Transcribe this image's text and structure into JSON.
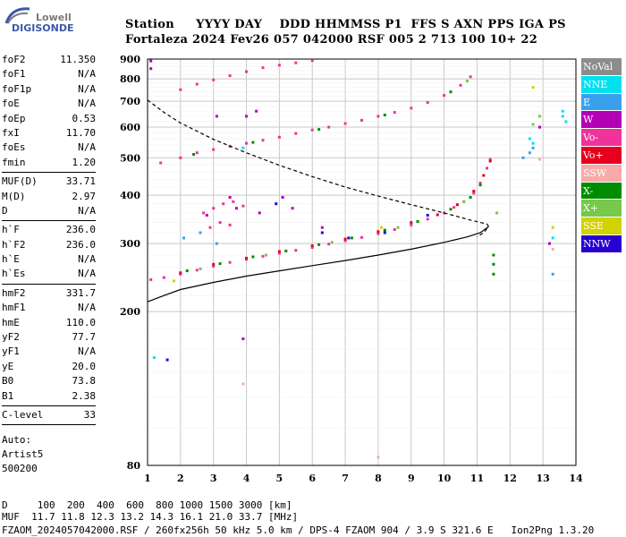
{
  "logo": {
    "line1": "Lowell",
    "line2": "DIGISONDE"
  },
  "header": {
    "line1": "Station     YYYY DAY    DDD HHMMSS P1  FFS S AXN PPS IGA PS",
    "line2": "Fortaleza 2024 Fev26 057 042000 RSF 005 2 713 100 10+ 22"
  },
  "params": {
    "group1": [
      {
        "k": "foF2",
        "v": "11.350"
      },
      {
        "k": "foF1",
        "v": "N/A"
      },
      {
        "k": "foF1p",
        "v": "N/A"
      },
      {
        "k": "foE",
        "v": "N/A"
      },
      {
        "k": "foEp",
        "v": "0.53"
      },
      {
        "k": "fxI",
        "v": "11.70"
      },
      {
        "k": "foEs",
        "v": "N/A"
      },
      {
        "k": "fmin",
        "v": "1.20"
      }
    ],
    "group2": [
      {
        "k": "MUF(D)",
        "v": "33.71"
      },
      {
        "k": "M(D)",
        "v": "2.97"
      },
      {
        "k": "D",
        "v": "N/A"
      }
    ],
    "group3": [
      {
        "k": "h`F",
        "v": "236.0"
      },
      {
        "k": "h`F2",
        "v": "236.0"
      },
      {
        "k": "h`E",
        "v": "N/A"
      },
      {
        "k": "h`Es",
        "v": "N/A"
      }
    ],
    "group4": [
      {
        "k": "hmF2",
        "v": "331.7"
      },
      {
        "k": "hmF1",
        "v": "N/A"
      },
      {
        "k": "hmE",
        "v": "110.0"
      },
      {
        "k": "yF2",
        "v": "77.7"
      },
      {
        "k": "yF1",
        "v": "N/A"
      },
      {
        "k": "yE",
        "v": "20.0"
      },
      {
        "k": "B0",
        "v": "73.8"
      },
      {
        "k": "B1",
        "v": "2.38"
      }
    ],
    "clevel": {
      "k": "C-level",
      "v": "33"
    }
  },
  "auto": [
    "Auto:",
    "Artist5",
    "500200"
  ],
  "footer": {
    "line1": "D     100  200  400  600  800 1000 1500 3000 [km]",
    "line2": "MUF  11.7 11.8 12.3 13.2 14.3 16.1 21.0 33.7 [MHz]",
    "line3": "FZAOM_2024057042000.RSF / 260fx256h 50 kHz 5.0 km / DPS-4 FZAOM 904 / 3.9 S 321.6 E   Ion2Png 1.3.20"
  },
  "legend": [
    {
      "label": "NoVal",
      "color": "#8c8c8c"
    },
    {
      "label": "NNE",
      "color": "#00e1f0"
    },
    {
      "label": "E",
      "color": "#3aa0ee"
    },
    {
      "label": "W",
      "color": "#b400b4"
    },
    {
      "label": "Vo-",
      "color": "#f0329b"
    },
    {
      "label": "Vo+",
      "color": "#e6001e"
    },
    {
      "label": "SSW",
      "color": "#f8aaaa"
    },
    {
      "label": "X-",
      "color": "#008c00"
    },
    {
      "label": "X+",
      "color": "#78c84b"
    },
    {
      "label": "SSE",
      "color": "#d2d200"
    },
    {
      "label": "NNW",
      "color": "#2800d2"
    }
  ],
  "chart_data": {
    "type": "scatter",
    "xlabel": "",
    "ylabel": "",
    "xlim": [
      1,
      14
    ],
    "ylim": [
      80,
      900
    ],
    "y_scale": "log",
    "x_ticks": [
      1,
      2,
      3,
      4,
      5,
      6,
      7,
      8,
      9,
      10,
      11,
      12,
      13,
      14
    ],
    "y_ticks": [
      80,
      200,
      300,
      400,
      500,
      600,
      700,
      800,
      900
    ],
    "grid": true,
    "series": [
      {
        "name": "Vo-",
        "color": "#f0329b",
        "kind": "echo",
        "points": [
          [
            1.1,
            242
          ],
          [
            1.5,
            245
          ],
          [
            2,
            250
          ],
          [
            2.5,
            256
          ],
          [
            3,
            262
          ],
          [
            3.5,
            268
          ],
          [
            4,
            273
          ],
          [
            4.5,
            278
          ],
          [
            5,
            283
          ],
          [
            5.5,
            288
          ],
          [
            6,
            293
          ],
          [
            6.5,
            299
          ],
          [
            7,
            305
          ],
          [
            7.5,
            311
          ],
          [
            8,
            318
          ],
          [
            8.5,
            326
          ],
          [
            9,
            335
          ],
          [
            9.5,
            347
          ],
          [
            10,
            360
          ],
          [
            10.3,
            372
          ],
          [
            10.6,
            385
          ],
          [
            10.9,
            405
          ],
          [
            11.1,
            430
          ],
          [
            11.3,
            470
          ],
          [
            11.4,
            495
          ],
          [
            1.4,
            485
          ],
          [
            2,
            500
          ],
          [
            2.5,
            515
          ],
          [
            3,
            525
          ],
          [
            3.5,
            535
          ],
          [
            4,
            545
          ],
          [
            4.5,
            555
          ],
          [
            5,
            565
          ],
          [
            5.5,
            578
          ],
          [
            6,
            590
          ],
          [
            6.5,
            600
          ],
          [
            7,
            613
          ],
          [
            7.5,
            625
          ],
          [
            8,
            640
          ],
          [
            8.5,
            655
          ],
          [
            9,
            672
          ],
          [
            9.5,
            695
          ],
          [
            10,
            725
          ],
          [
            10.5,
            770
          ],
          [
            10.8,
            810
          ],
          [
            2,
            750
          ],
          [
            2.5,
            775
          ],
          [
            3,
            795
          ],
          [
            3.5,
            815
          ],
          [
            4,
            835
          ],
          [
            4.5,
            855
          ],
          [
            5,
            868
          ],
          [
            5.5,
            880
          ],
          [
            6,
            892
          ],
          [
            2.7,
            360
          ],
          [
            3,
            370
          ],
          [
            3.3,
            380
          ],
          [
            3.6,
            385
          ],
          [
            3.9,
            375
          ],
          [
            3.2,
            340
          ],
          [
            3.5,
            335
          ],
          [
            2.9,
            330
          ]
        ]
      },
      {
        "name": "Vo+",
        "color": "#e6001e",
        "kind": "echo",
        "points": [
          [
            2,
            252
          ],
          [
            3,
            265
          ],
          [
            4,
            275
          ],
          [
            5,
            286
          ],
          [
            6,
            296
          ],
          [
            7,
            308
          ],
          [
            8,
            322
          ],
          [
            9,
            340
          ],
          [
            9.8,
            356
          ],
          [
            10.4,
            378
          ],
          [
            10.9,
            410
          ],
          [
            11.2,
            450
          ],
          [
            11.4,
            490
          ]
        ]
      },
      {
        "name": "X-",
        "color": "#008c00",
        "kind": "echo",
        "points": [
          [
            2.2,
            255
          ],
          [
            3.2,
            266
          ],
          [
            4.2,
            277
          ],
          [
            5.2,
            287
          ],
          [
            6.2,
            298
          ],
          [
            7.2,
            310
          ],
          [
            8.2,
            325
          ],
          [
            9.2,
            342
          ],
          [
            10.2,
            368
          ],
          [
            10.8,
            395
          ],
          [
            11.1,
            425
          ],
          [
            11.5,
            280
          ],
          [
            11.5,
            265
          ],
          [
            11.5,
            250
          ],
          [
            2.4,
            510
          ],
          [
            4.2,
            548
          ],
          [
            6.2,
            592
          ],
          [
            8.2,
            645
          ],
          [
            10.2,
            740
          ]
        ]
      },
      {
        "name": "X+",
        "color": "#78c84b",
        "kind": "echo",
        "points": [
          [
            2.6,
            258
          ],
          [
            4.6,
            280
          ],
          [
            6.6,
            302
          ],
          [
            8.6,
            330
          ],
          [
            10.6,
            385
          ],
          [
            11.6,
            360
          ],
          [
            12.7,
            610
          ],
          [
            12.9,
            640
          ],
          [
            10.7,
            790
          ]
        ]
      },
      {
        "name": "W",
        "color": "#b400b4",
        "kind": "echo",
        "points": [
          [
            1.1,
            890
          ],
          [
            1.1,
            850
          ],
          [
            3.5,
            395
          ],
          [
            3.7,
            370
          ],
          [
            2.8,
            355
          ],
          [
            4.4,
            360
          ],
          [
            5.1,
            395
          ],
          [
            5.4,
            370
          ],
          [
            6.3,
            330
          ],
          [
            3.9,
            170
          ],
          [
            13.2,
            300
          ],
          [
            12.9,
            600
          ],
          [
            3.1,
            640
          ],
          [
            4,
            640
          ],
          [
            4.3,
            660
          ]
        ]
      },
      {
        "name": "NNE",
        "color": "#00e1f0",
        "kind": "echo",
        "points": [
          [
            13.6,
            660
          ],
          [
            13.6,
            640
          ],
          [
            13.7,
            620
          ],
          [
            12.6,
            560
          ],
          [
            12.7,
            545
          ],
          [
            1.2,
            152
          ],
          [
            3.9,
            530
          ],
          [
            13.3,
            310
          ]
        ]
      },
      {
        "name": "E",
        "color": "#3aa0ee",
        "kind": "echo",
        "points": [
          [
            12.4,
            500
          ],
          [
            12.6,
            515
          ],
          [
            12.7,
            530
          ],
          [
            2.1,
            310
          ],
          [
            2.6,
            320
          ],
          [
            3.1,
            300
          ],
          [
            13.3,
            250
          ]
        ]
      },
      {
        "name": "NNW",
        "color": "#2800d2",
        "kind": "echo",
        "points": [
          [
            1.6,
            150
          ],
          [
            6.3,
            320
          ],
          [
            7.1,
            310
          ],
          [
            8.2,
            320
          ],
          [
            9.5,
            355
          ],
          [
            4.9,
            380
          ]
        ]
      },
      {
        "name": "SSE",
        "color": "#d2d200",
        "kind": "echo",
        "points": [
          [
            13.3,
            330
          ],
          [
            12.7,
            760
          ],
          [
            1.8,
            240
          ],
          [
            8.1,
            330
          ]
        ]
      },
      {
        "name": "SSW",
        "color": "#f8aaaa",
        "kind": "echo",
        "points": [
          [
            12.9,
            495
          ],
          [
            13.3,
            290
          ],
          [
            3.9,
            130
          ],
          [
            8,
            84
          ]
        ]
      },
      {
        "name": "",
        "color": "#000000",
        "kind": "line",
        "dash": false,
        "points": [
          [
            1,
            212
          ],
          [
            1.5,
            220
          ],
          [
            2,
            228
          ],
          [
            3,
            238
          ],
          [
            4,
            247
          ],
          [
            5,
            255
          ],
          [
            6,
            263
          ],
          [
            7,
            271
          ],
          [
            8,
            280
          ],
          [
            9,
            290
          ],
          [
            10,
            302
          ],
          [
            10.7,
            312
          ],
          [
            11.1,
            320
          ],
          [
            11.35,
            331.7
          ]
        ]
      },
      {
        "name": "",
        "color": "#000000",
        "kind": "line",
        "dash": true,
        "points": [
          [
            1,
            705
          ],
          [
            1.5,
            655
          ],
          [
            2,
            615
          ],
          [
            3,
            558
          ],
          [
            4,
            515
          ],
          [
            5,
            478
          ],
          [
            6,
            447
          ],
          [
            7,
            420
          ],
          [
            8,
            398
          ],
          [
            9,
            378
          ],
          [
            10,
            360
          ],
          [
            10.8,
            345
          ],
          [
            11.3,
            337
          ],
          [
            11.35,
            331.7
          ],
          [
            11.2,
            320
          ],
          [
            11,
            312
          ]
        ]
      }
    ]
  }
}
